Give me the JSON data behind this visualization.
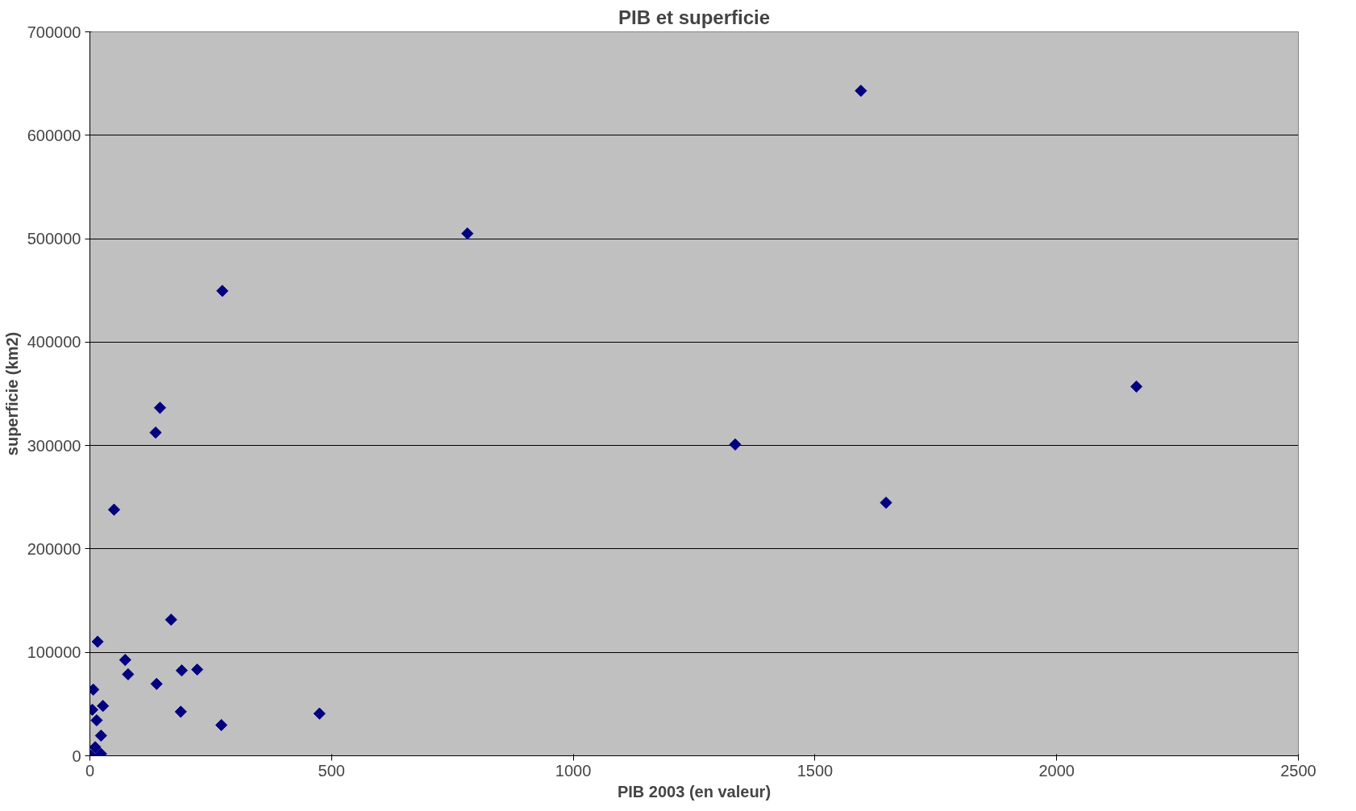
{
  "chart_data": {
    "type": "scatter",
    "title": "PIB et superficie",
    "xlabel": "PIB 2003 (en valeur)",
    "ylabel": "superficie (km2)",
    "x": [
      1595,
      781,
      274,
      2165,
      145,
      136,
      1335,
      1647,
      50,
      168,
      16,
      73,
      79,
      190,
      222,
      138,
      7,
      27,
      5,
      188,
      475,
      14,
      272,
      23,
      11,
      23,
      2
    ],
    "series": [
      {
        "color": "#000080",
        "values": [
          643000,
          505000,
          449500,
          357000,
          336500,
          312500,
          301000,
          244700,
          238000,
          131600,
          110300,
          92700,
          78800,
          82500,
          83400,
          69500,
          64000,
          48200,
          44500,
          42600,
          40800,
          34300,
          29700,
          19500,
          8300,
          1900,
          300
        ]
      }
    ],
    "xlim": [
      0,
      2500
    ],
    "xticks": [
      0,
      500,
      1000,
      1500,
      2000,
      2500
    ],
    "ylim": [
      0,
      700000
    ],
    "yticks": [
      0,
      100000,
      200000,
      300000,
      400000,
      500000,
      600000,
      700000
    ],
    "grid": "y",
    "marker": "diamond"
  }
}
